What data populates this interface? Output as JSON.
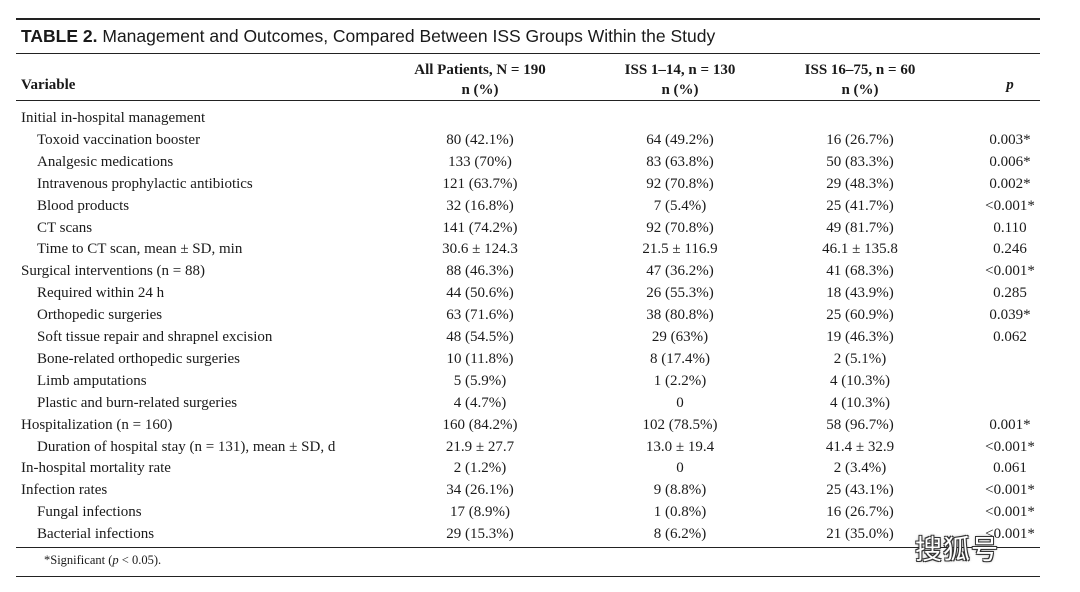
{
  "table": {
    "label": "TABLE 2.",
    "title": "Management and Outcomes, Compared Between ISS Groups Within the Study",
    "headers": {
      "variable": "Variable",
      "all_line1": "All Patients, N = 190",
      "all_line2": "n (%)",
      "iss1_line1": "ISS 1–14, n = 130",
      "iss1_line2": "n (%)",
      "iss2_line1": "ISS 16–75, n = 60",
      "iss2_line2": "n (%)",
      "p": "p"
    },
    "rows": [
      {
        "variable": "Initial in-hospital management",
        "all": "",
        "iss1": "",
        "iss2": "",
        "p": "",
        "indent": false
      },
      {
        "variable": "Toxoid vaccination booster",
        "all": "80 (42.1%)",
        "iss1": "64 (49.2%)",
        "iss2": "16 (26.7%)",
        "p": "0.003*",
        "indent": true
      },
      {
        "variable": "Analgesic medications",
        "all": "133 (70%)",
        "iss1": "83 (63.8%)",
        "iss2": "50 (83.3%)",
        "p": "0.006*",
        "indent": true
      },
      {
        "variable": "Intravenous prophylactic antibiotics",
        "all": "121 (63.7%)",
        "iss1": "92 (70.8%)",
        "iss2": "29 (48.3%)",
        "p": "0.002*",
        "indent": true
      },
      {
        "variable": "Blood products",
        "all": "32 (16.8%)",
        "iss1": "7 (5.4%)",
        "iss2": "25 (41.7%)",
        "p": "<0.001*",
        "indent": true
      },
      {
        "variable": "CT scans",
        "all": "141 (74.2%)",
        "iss1": "92 (70.8%)",
        "iss2": "49 (81.7%)",
        "p": "0.110",
        "indent": true
      },
      {
        "variable": "Time to CT scan, mean ± SD, min",
        "all": "30.6 ± 124.3",
        "iss1": "21.5 ± 116.9",
        "iss2": "46.1 ± 135.8",
        "p": "0.246",
        "indent": true
      },
      {
        "variable": "Surgical interventions (n = 88)",
        "all": "88 (46.3%)",
        "iss1": "47 (36.2%)",
        "iss2": "41 (68.3%)",
        "p": "<0.001*",
        "indent": false
      },
      {
        "variable": "Required within 24 h",
        "all": "44 (50.6%)",
        "iss1": "26 (55.3%)",
        "iss2": "18 (43.9%)",
        "p": "0.285",
        "indent": true
      },
      {
        "variable": "Orthopedic surgeries",
        "all": "63 (71.6%)",
        "iss1": "38 (80.8%)",
        "iss2": "25 (60.9%)",
        "p": "0.039*",
        "indent": true
      },
      {
        "variable": "Soft tissue repair and shrapnel excision",
        "all": "48 (54.5%)",
        "iss1": "29 (63%)",
        "iss2": "19 (46.3%)",
        "p": "0.062",
        "indent": true
      },
      {
        "variable": "Bone-related orthopedic surgeries",
        "all": "10 (11.8%)",
        "iss1": "8 (17.4%)",
        "iss2": "2 (5.1%)",
        "p": "",
        "indent": true
      },
      {
        "variable": "Limb amputations",
        "all": "5 (5.9%)",
        "iss1": "1 (2.2%)",
        "iss2": "4 (10.3%)",
        "p": "",
        "indent": true
      },
      {
        "variable": "Plastic and burn-related surgeries",
        "all": "4 (4.7%)",
        "iss1": "0",
        "iss2": "4 (10.3%)",
        "p": "",
        "indent": true
      },
      {
        "variable": "Hospitalization (n = 160)",
        "all": "160 (84.2%)",
        "iss1": "102 (78.5%)",
        "iss2": "58 (96.7%)",
        "p": "0.001*",
        "indent": false
      },
      {
        "variable": "Duration of hospital stay (n = 131), mean ± SD, d",
        "all": "21.9 ± 27.7",
        "iss1": "13.0 ± 19.4",
        "iss2": "41.4 ± 32.9",
        "p": "<0.001*",
        "indent": true
      },
      {
        "variable": "In-hospital mortality rate",
        "all": "2 (1.2%)",
        "iss1": "0",
        "iss2": "2 (3.4%)",
        "p": "0.061",
        "indent": false
      },
      {
        "variable": "Infection rates",
        "all": "34 (26.1%)",
        "iss1": "9 (8.8%)",
        "iss2": "25 (43.1%)",
        "p": "<0.001*",
        "indent": false
      },
      {
        "variable": "Fungal infections",
        "all": "17 (8.9%)",
        "iss1": "1 (0.8%)",
        "iss2": "16 (26.7%)",
        "p": "<0.001*",
        "indent": true
      },
      {
        "variable": "Bacterial infections",
        "all": "29 (15.3%)",
        "iss1": "8 (6.2%)",
        "iss2": "21 (35.0%)",
        "p": "<0.001*",
        "indent": true
      }
    ],
    "footnote": {
      "prefix": "*Significant (",
      "p_symbol": "p",
      "suffix": " < 0.05)."
    }
  },
  "watermark": "搜狐号"
}
